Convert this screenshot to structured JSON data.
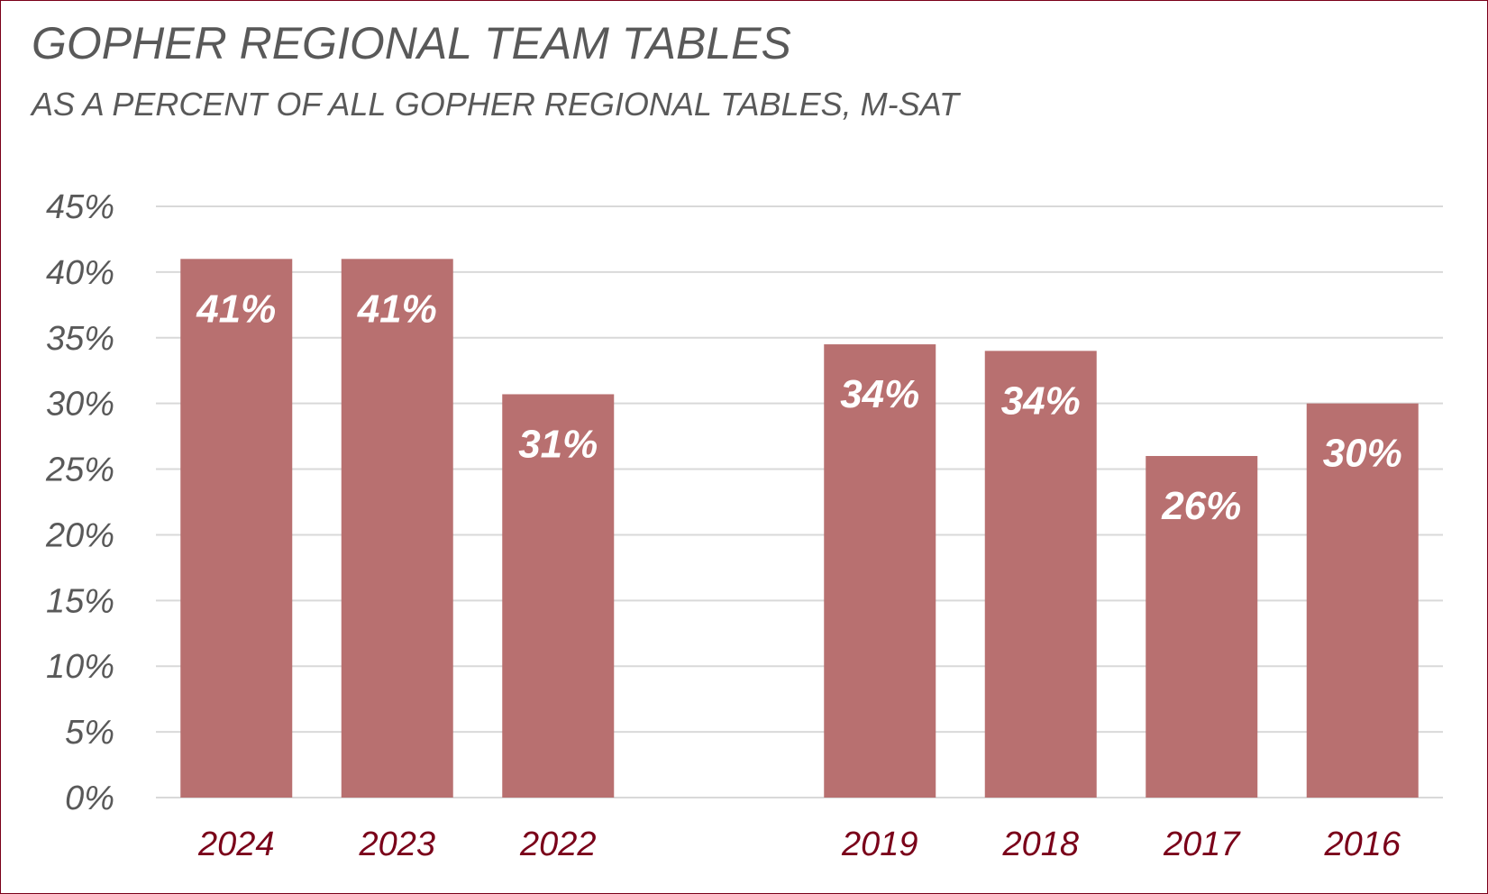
{
  "chart_data": {
    "type": "bar",
    "title": "GOPHER REGIONAL TEAM TABLES",
    "subtitle": "AS A PERCENT OF ALL GOPHER REGIONAL TABLES, M-SAT",
    "xlabel": "",
    "ylabel": "",
    "categories": [
      "2024",
      "2023",
      "2022",
      "",
      "2019",
      "2018",
      "2017",
      "2016"
    ],
    "values": [
      0.41,
      0.41,
      0.307,
      null,
      0.345,
      0.34,
      0.26,
      0.3
    ],
    "data_labels": [
      "41%",
      "41%",
      "31%",
      "",
      "34%",
      "34%",
      "26%",
      "30%"
    ],
    "ylim": [
      0,
      0.45
    ],
    "y_ticks": [
      {
        "value": 0.0,
        "label": "0%"
      },
      {
        "value": 0.05,
        "label": "5%"
      },
      {
        "value": 0.1,
        "label": "10%"
      },
      {
        "value": 0.15,
        "label": "15%"
      },
      {
        "value": 0.2,
        "label": "20%"
      },
      {
        "value": 0.25,
        "label": "25%"
      },
      {
        "value": 0.3,
        "label": "30%"
      },
      {
        "value": 0.35,
        "label": "35%"
      },
      {
        "value": 0.4,
        "label": "40%"
      },
      {
        "value": 0.45,
        "label": "45%"
      }
    ],
    "grid": true,
    "legend": "none"
  },
  "colors": {
    "bar": "#b87070",
    "gridline": "#d9d9d9",
    "category_label": "#7a0019",
    "tick_label": "#595959",
    "data_label": "#ffffff",
    "border": "#7a0019"
  }
}
